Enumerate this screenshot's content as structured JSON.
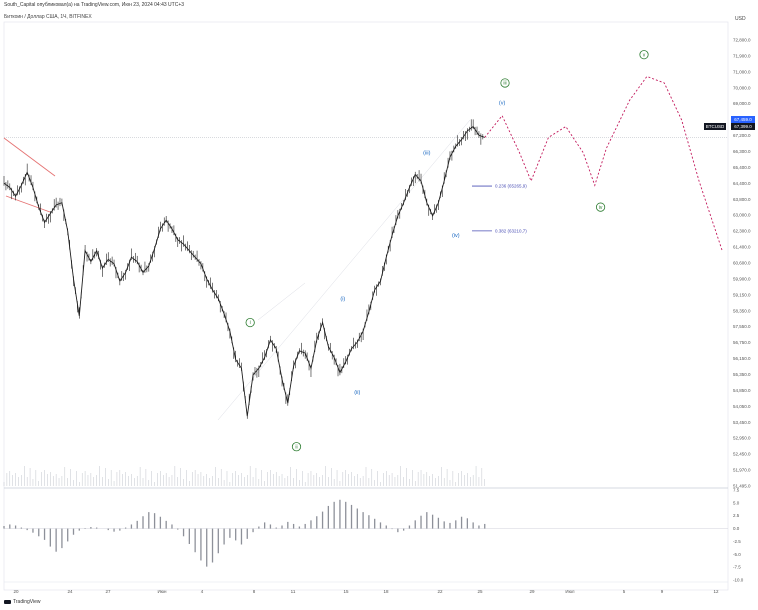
{
  "header": {
    "publisher_line": "South_Capital опубликовал(а) на TradingView.com, Июн 23, 2024 04:43 UTC+3",
    "symbol_line": "Биткоин / Доллар США, 1Ч, BITFINEX",
    "currency": "USD"
  },
  "watermark": "TradingView",
  "chart_data": {
    "type": "line",
    "symbol": "BTCUSD",
    "last_price": "67,459.0",
    "last_price_alt": "67,399.0",
    "ylim": [
      51495,
      72800
    ],
    "price_ticks": [
      "72,800.0",
      "71,900.0",
      "71,000.0",
      "70,000.0",
      "69,000.0",
      "68,000.0",
      "67,200.0",
      "66,300.0",
      "65,400.0",
      "64,400.0",
      "63,800.0",
      "63,000.0",
      "62,300.0",
      "61,400.0",
      "60,600.0",
      "59,900.0",
      "59,150.0",
      "58,350.0",
      "57,550.0",
      "56,750.0",
      "56,150.0",
      "55,350.0",
      "54,850.0",
      "54,050.0",
      "53,450.0",
      "52,950.0",
      "52,450.0",
      "51,970.0",
      "51,495.0"
    ],
    "osc_ticks": [
      "7.5",
      "5.0",
      "2.5",
      "0.0",
      "-2.5",
      "-5.0",
      "-7.5",
      "-10.0"
    ],
    "x_ticks": [
      "20",
      "24",
      "27",
      "Июн",
      "4",
      "8",
      "11",
      "15",
      "18",
      "22",
      "25",
      "29",
      "Июл",
      "5",
      "9",
      "12"
    ],
    "price_path": [
      [
        0,
        65400
      ],
      [
        1,
        65200
      ],
      [
        2,
        64800
      ],
      [
        3,
        65300
      ],
      [
        4,
        65900
      ],
      [
        5,
        65200
      ],
      [
        6,
        64300
      ],
      [
        7,
        63600
      ],
      [
        8,
        64000
      ],
      [
        9,
        64400
      ],
      [
        10,
        64500
      ],
      [
        11,
        63200
      ],
      [
        12,
        61000
      ],
      [
        13,
        59300
      ],
      [
        14,
        62300
      ],
      [
        15,
        61800
      ],
      [
        16,
        62300
      ],
      [
        17,
        61500
      ],
      [
        18,
        61900
      ],
      [
        19,
        61700
      ],
      [
        20,
        60900
      ],
      [
        21,
        61300
      ],
      [
        22,
        62000
      ],
      [
        23,
        61800
      ],
      [
        24,
        61300
      ],
      [
        25,
        61600
      ],
      [
        26,
        62400
      ],
      [
        27,
        63300
      ],
      [
        28,
        63700
      ],
      [
        29,
        63300
      ],
      [
        30,
        62800
      ],
      [
        31,
        62600
      ],
      [
        32,
        62300
      ],
      [
        33,
        62000
      ],
      [
        34,
        61700
      ],
      [
        35,
        61000
      ],
      [
        36,
        60500
      ],
      [
        37,
        60100
      ],
      [
        38,
        59400
      ],
      [
        39,
        58600
      ],
      [
        40,
        57300
      ],
      [
        41,
        56900
      ],
      [
        42,
        54700
      ],
      [
        43,
        56600
      ],
      [
        44,
        56900
      ],
      [
        45,
        57400
      ],
      [
        46,
        58200
      ],
      [
        47,
        57800
      ],
      [
        48,
        56400
      ],
      [
        49,
        55300
      ],
      [
        50,
        57000
      ],
      [
        51,
        57700
      ],
      [
        52,
        57600
      ],
      [
        53,
        56900
      ],
      [
        54,
        58200
      ],
      [
        55,
        59000
      ],
      [
        56,
        57900
      ],
      [
        57,
        57400
      ],
      [
        58,
        56700
      ],
      [
        59,
        57200
      ],
      [
        60,
        57800
      ],
      [
        61,
        58100
      ],
      [
        62,
        58600
      ],
      [
        63,
        59500
      ],
      [
        64,
        60500
      ],
      [
        65,
        60900
      ],
      [
        66,
        62000
      ],
      [
        67,
        63000
      ],
      [
        68,
        63900
      ],
      [
        69,
        64500
      ],
      [
        70,
        65200
      ],
      [
        71,
        65800
      ],
      [
        72,
        65500
      ],
      [
        73,
        64500
      ],
      [
        74,
        63900
      ],
      [
        75,
        64500
      ],
      [
        76,
        65500
      ],
      [
        77,
        66600
      ],
      [
        78,
        67100
      ],
      [
        79,
        67400
      ],
      [
        80,
        67800
      ],
      [
        81,
        68000
      ],
      [
        82,
        67600
      ],
      [
        83,
        67500
      ]
    ],
    "projection_path": [
      [
        83,
        67500
      ],
      [
        86,
        68500
      ],
      [
        89,
        66800
      ],
      [
        91,
        65500
      ],
      [
        94,
        67500
      ],
      [
        97,
        68000
      ],
      [
        100,
        66800
      ],
      [
        102,
        65300
      ],
      [
        104,
        67000
      ],
      [
        108,
        69200
      ],
      [
        111,
        70300
      ],
      [
        114,
        70000
      ],
      [
        117,
        68300
      ],
      [
        120,
        65500
      ],
      [
        124,
        62300
      ]
    ],
    "fib_levels": [
      {
        "label": "0.236 (65265,9)",
        "price": 65266
      },
      {
        "label": "0.382 (63210,7)",
        "price": 63211
      }
    ],
    "wave_labels": [
      {
        "text": "i",
        "style": "circle",
        "color": "#2e7d32",
        "x": 42.5,
        "price": 59000
      },
      {
        "text": "ii",
        "style": "circle",
        "color": "#2e7d32",
        "x": 50.5,
        "price": 53300
      },
      {
        "text": "(i)",
        "style": "plain",
        "color": "#1565c0",
        "x": 58.5,
        "price": 60100
      },
      {
        "text": "(ii)",
        "style": "plain",
        "color": "#1565c0",
        "x": 61,
        "price": 55800
      },
      {
        "text": "(iii)",
        "style": "plain",
        "color": "#1565c0",
        "x": 73,
        "price": 66800
      },
      {
        "text": "(iv)",
        "style": "plain",
        "color": "#1565c0",
        "x": 78,
        "price": 63000
      },
      {
        "text": "(v)",
        "style": "plain",
        "color": "#1565c0",
        "x": 86,
        "price": 69100
      },
      {
        "text": "iii",
        "style": "circle",
        "color": "#2e7d32",
        "x": 86.5,
        "price": 70000
      },
      {
        "text": "iv",
        "style": "circle",
        "color": "#2e7d32",
        "x": 103,
        "price": 64300
      },
      {
        "text": "v",
        "style": "circle",
        "color": "#2e7d32",
        "x": 110.5,
        "price": 71300
      }
    ],
    "oscillator": {
      "ylim": [
        -10,
        7.5
      ],
      "values": [
        0.5,
        0.8,
        0.6,
        0.2,
        -0.3,
        -0.8,
        -1.5,
        -2.2,
        -3.5,
        -4.5,
        -3.8,
        -2.5,
        -1.2,
        -0.4,
        0.1,
        0.3,
        0.2,
        0.0,
        -0.3,
        -0.6,
        -0.4,
        0.2,
        0.8,
        1.5,
        2.4,
        3.2,
        3.0,
        2.3,
        1.5,
        0.8,
        -0.2,
        -1.5,
        -3.0,
        -4.6,
        -6.2,
        -7.4,
        -6.6,
        -4.8,
        -3.1,
        -1.8,
        -2.3,
        -3.1,
        -2.0,
        -0.7,
        0.4,
        1.2,
        0.8,
        0.2,
        0.6,
        1.3,
        0.9,
        0.4,
        0.9,
        1.6,
        2.4,
        3.3,
        4.4,
        5.2,
        5.6,
        5.2,
        4.6,
        3.9,
        3.2,
        2.6,
        1.9,
        1.2,
        0.6,
        -0.1,
        -0.7,
        -0.4,
        0.6,
        1.6,
        2.5,
        3.2,
        2.7,
        2.1,
        1.4,
        1.1,
        1.6,
        2.3,
        2.0,
        1.2,
        0.6,
        0.9
      ]
    },
    "colors": {
      "up": "#089981",
      "down": "#131722",
      "candle": "#1f1f1f",
      "projection": "#c2185b",
      "price_tag": "#2962ff",
      "channel": "#e57373",
      "fib": "#4a4fb5"
    }
  }
}
